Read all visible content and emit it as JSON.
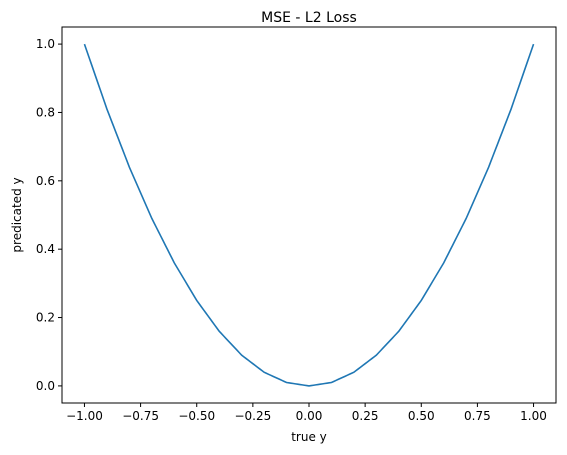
{
  "chart_data": {
    "type": "line",
    "title": "MSE - L2 Loss",
    "xlabel": "true y",
    "ylabel": "predicated y",
    "xlim": [
      -1.1,
      1.1
    ],
    "ylim": [
      -0.05,
      1.05
    ],
    "xticks": [
      -1.0,
      -0.75,
      -0.5,
      -0.25,
      0.0,
      0.25,
      0.5,
      0.75,
      1.0
    ],
    "xtick_labels": [
      "−1.00",
      "−0.75",
      "−0.50",
      "−0.25",
      "0.00",
      "0.25",
      "0.50",
      "0.75",
      "1.00"
    ],
    "yticks": [
      0.0,
      0.2,
      0.4,
      0.6,
      0.8,
      1.0
    ],
    "ytick_labels": [
      "0.0",
      "0.2",
      "0.4",
      "0.6",
      "0.8",
      "1.0"
    ],
    "grid": false,
    "series": [
      {
        "color": "#1f77b4",
        "x": [
          -1.0,
          -0.9,
          -0.8,
          -0.7,
          -0.6,
          -0.5,
          -0.4,
          -0.3,
          -0.2,
          -0.1,
          0.0,
          0.1,
          0.2,
          0.3,
          0.4,
          0.5,
          0.6,
          0.7,
          0.8,
          0.9,
          1.0
        ],
        "y": [
          1.0,
          0.81,
          0.64,
          0.49,
          0.36,
          0.25,
          0.16,
          0.09,
          0.04,
          0.01,
          0.0,
          0.01,
          0.04,
          0.09,
          0.16,
          0.25,
          0.36,
          0.49,
          0.64,
          0.81,
          1.0
        ]
      }
    ]
  }
}
